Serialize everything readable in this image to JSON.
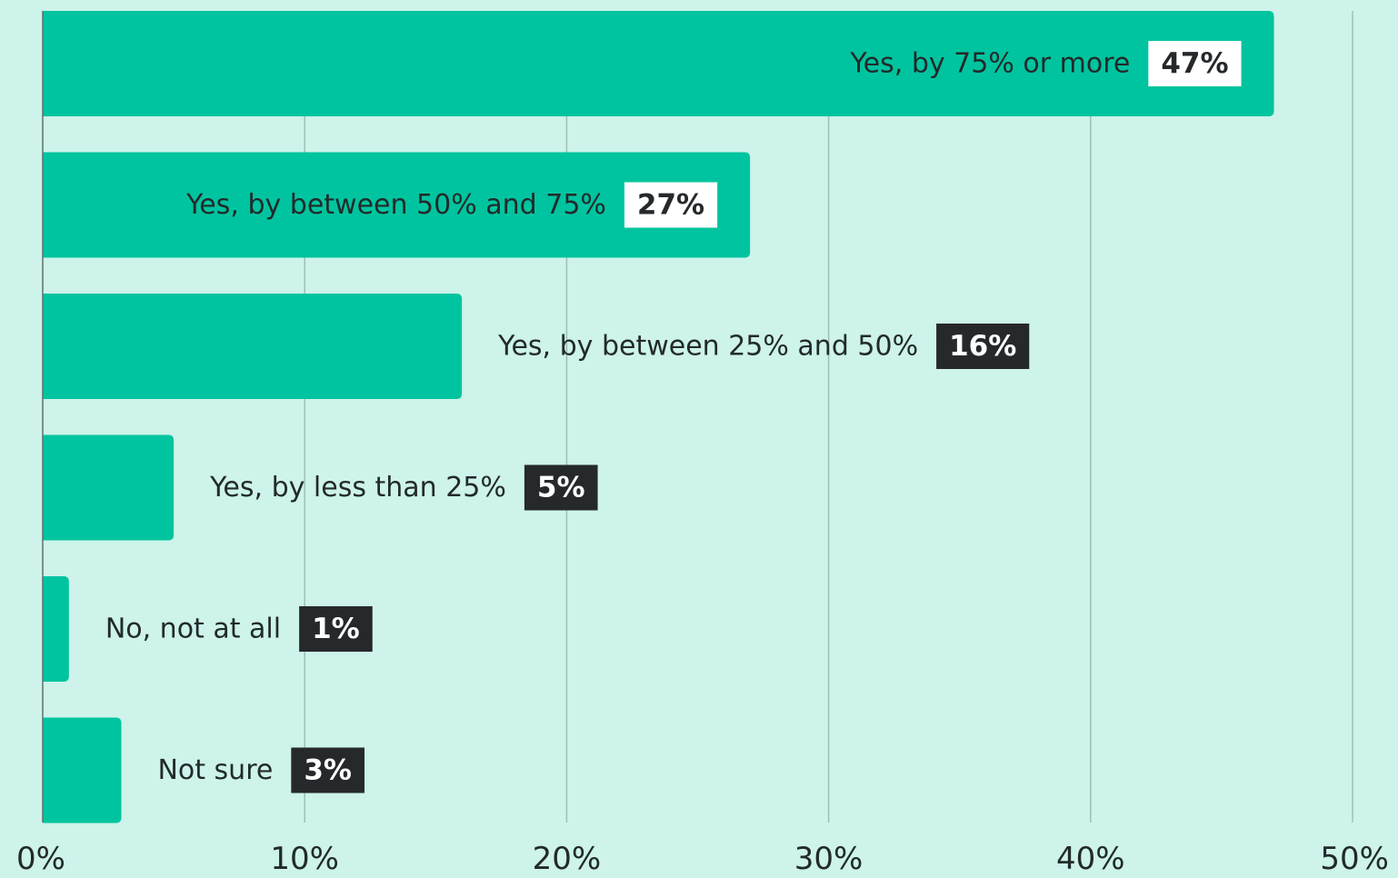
{
  "colors": {
    "background": "#CDF3EA",
    "bar": "#00C49F",
    "grid": "#9FBFB6",
    "axis": "#5F6F6B",
    "text": "#222A2A",
    "badge_dark": "#26292B",
    "badge_light": "#FFFFFF"
  },
  "chart_data": {
    "type": "bar",
    "orientation": "horizontal",
    "categories": [
      "Yes, by 75% or more",
      "Yes, by between 50% and 75%",
      "Yes, by between 25% and 50%",
      "Yes, by less than 25%",
      "No, not at all",
      "Not sure"
    ],
    "values": [
      47,
      27,
      16,
      5,
      1,
      3
    ],
    "data_labels": [
      "47%",
      "27%",
      "16%",
      "5%",
      "1%",
      "3%"
    ],
    "label_placement": [
      "inside",
      "inside",
      "outside",
      "outside",
      "outside",
      "outside"
    ],
    "xlim": [
      0,
      50
    ],
    "x_ticks": [
      0,
      10,
      20,
      30,
      40,
      50
    ],
    "x_tick_labels": [
      "0%",
      "10%",
      "20%",
      "30%",
      "40%",
      "50%"
    ],
    "grid": true,
    "title": "",
    "xlabel": "",
    "ylabel": ""
  }
}
